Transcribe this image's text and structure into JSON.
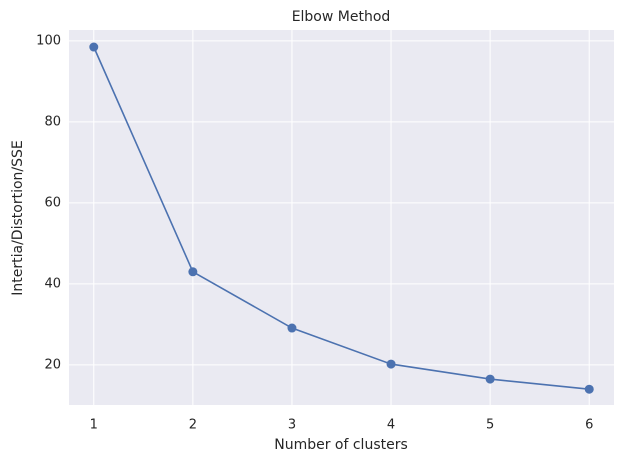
{
  "chart_data": {
    "type": "line",
    "title": "Elbow Method",
    "x_label": "Number of clusters",
    "y_label": "Intertia/Distortion/SSE",
    "x": [
      1,
      2,
      3,
      4,
      5,
      6
    ],
    "series": [
      {
        "name": "SSE",
        "color": "#4c72b0",
        "values": [
          98.5,
          43.0,
          29.1,
          20.2,
          16.5,
          14.0
        ]
      }
    ],
    "xlim": [
      0.75,
      6.25
    ],
    "ylim": [
      10.1,
      102.7
    ],
    "xticks": [
      1,
      2,
      3,
      4,
      5,
      6
    ],
    "yticks": [
      20,
      40,
      60,
      80,
      100
    ],
    "grid": true
  }
}
